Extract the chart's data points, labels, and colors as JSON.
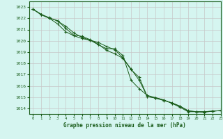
{
  "title": "Graphe pression niveau de la mer (hPa)",
  "bg_color": "#d5f5f0",
  "plot_bg_color": "#d5f5f0",
  "grid_color": "#c8c8c8",
  "line_color": "#1a5c1a",
  "marker_color": "#1a5c1a",
  "xlim": [
    -0.5,
    23
  ],
  "ylim": [
    1013.5,
    1023.5
  ],
  "yticks": [
    1014,
    1015,
    1016,
    1017,
    1018,
    1019,
    1020,
    1021,
    1022,
    1023
  ],
  "xticks": [
    0,
    1,
    2,
    3,
    4,
    5,
    6,
    7,
    8,
    9,
    10,
    11,
    12,
    13,
    14,
    15,
    16,
    17,
    18,
    19,
    20,
    21,
    22,
    23
  ],
  "series1_x": [
    0,
    1,
    2,
    3,
    4,
    5,
    6,
    7,
    8,
    9,
    10,
    11,
    12,
    13,
    14,
    15,
    16,
    17,
    18,
    19,
    20,
    21,
    22,
    23
  ],
  "series1_y": [
    1022.8,
    1022.35,
    1022.05,
    1021.75,
    1021.3,
    1020.7,
    1020.3,
    1020.05,
    1019.85,
    1019.5,
    1019.2,
    1018.5,
    1017.5,
    1016.5,
    1015.05,
    1014.9,
    1014.7,
    1014.5,
    1014.2,
    1013.75,
    1013.7,
    1013.7,
    1013.75,
    1013.8
  ],
  "series2_x": [
    0,
    1,
    2,
    3,
    4,
    5,
    6,
    7,
    8,
    9,
    10,
    11,
    12,
    13,
    14,
    15,
    16,
    17,
    18,
    19,
    20,
    21,
    22,
    23
  ],
  "series2_y": [
    1022.8,
    1022.35,
    1022.0,
    1021.5,
    1020.8,
    1020.45,
    1020.2,
    1020.05,
    1019.65,
    1019.3,
    1019.3,
    1018.7,
    1016.5,
    1015.75,
    1015.15,
    1014.95,
    1014.75,
    1014.45,
    1014.2,
    1013.8,
    1013.7,
    1013.7,
    1013.75,
    1013.8
  ],
  "series3_x": [
    0,
    1,
    2,
    3,
    4,
    5,
    6,
    7,
    8,
    9,
    10,
    11,
    12,
    13,
    14,
    15,
    16,
    17,
    18,
    19,
    20,
    21,
    22,
    23
  ],
  "series3_y": [
    1022.8,
    1022.3,
    1022.0,
    1021.8,
    1021.1,
    1020.5,
    1020.4,
    1020.1,
    1019.7,
    1019.15,
    1018.85,
    1018.45,
    1017.45,
    1016.75,
    1015.05,
    1014.95,
    1014.75,
    1014.45,
    1014.1,
    1013.7,
    1013.7,
    1013.65,
    1013.75,
    1013.8
  ]
}
